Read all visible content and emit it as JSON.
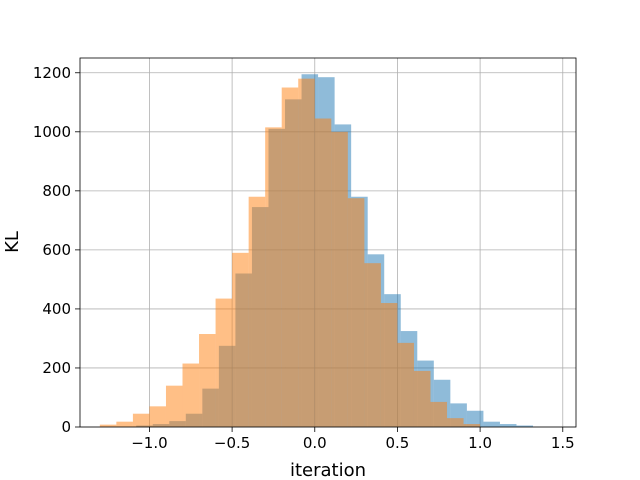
{
  "chart_data": {
    "type": "bar",
    "title": "",
    "xlabel": "iteration",
    "ylabel": "KL",
    "xlim": [
      -1.42,
      1.58
    ],
    "ylim": [
      0,
      1250
    ],
    "xticks": [
      -1.0,
      -0.5,
      0.0,
      0.5,
      1.0,
      1.5
    ],
    "xtick_labels": [
      "−1.0",
      "−0.5",
      "0.0",
      "0.5",
      "1.0",
      "1.5"
    ],
    "yticks": [
      0,
      200,
      400,
      600,
      800,
      1000,
      1200
    ],
    "ytick_labels": [
      "0",
      "200",
      "400",
      "600",
      "800",
      "1000",
      "1200"
    ],
    "grid": true,
    "series": [
      {
        "color": "#1f77b4",
        "alpha": 0.5,
        "bin_edges": [
          -1.08,
          -0.98,
          -0.88,
          -0.78,
          -0.68,
          -0.58,
          -0.48,
          -0.38,
          -0.28,
          -0.18,
          -0.08,
          0.02,
          0.12,
          0.22,
          0.32,
          0.42,
          0.52,
          0.62,
          0.72,
          0.82,
          0.92,
          1.02,
          1.12,
          1.22,
          1.32,
          1.42
        ],
        "counts": [
          5,
          10,
          20,
          45,
          130,
          275,
          520,
          745,
          1010,
          1110,
          1195,
          1185,
          1025,
          780,
          585,
          450,
          325,
          225,
          160,
          80,
          55,
          18,
          10,
          5,
          0
        ]
      },
      {
        "color": "#ff7f0e",
        "alpha": 0.5,
        "bin_edges": [
          -1.3,
          -1.2,
          -1.1,
          -1.0,
          -0.9,
          -0.8,
          -0.7,
          -0.6,
          -0.5,
          -0.4,
          -0.3,
          -0.2,
          -0.1,
          0.0,
          0.1,
          0.2,
          0.3,
          0.4,
          0.5,
          0.6,
          0.7,
          0.8,
          0.9,
          1.0
        ],
        "counts": [
          8,
          18,
          45,
          70,
          140,
          215,
          315,
          435,
          590,
          780,
          1015,
          1150,
          1180,
          1045,
          1000,
          775,
          555,
          420,
          285,
          190,
          85,
          30,
          10
        ]
      }
    ]
  }
}
